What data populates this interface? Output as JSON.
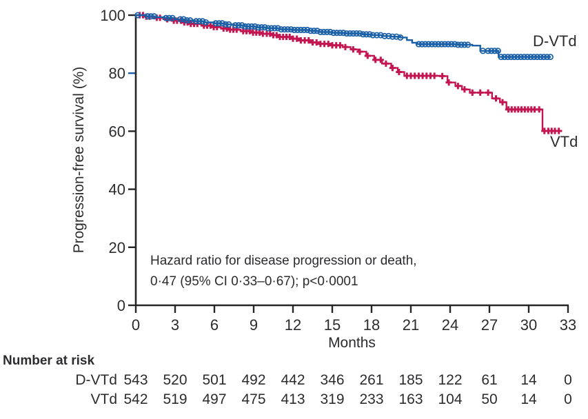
{
  "annotation": {
    "line1": "Hazard ratio for disease progression or death,",
    "line2": "0·47 (95% CI 0·33–0·67); p<0·0001"
  },
  "axes": {
    "x_label": "Months",
    "y_label": "Progression-free survival (%)",
    "x_ticks": [
      0,
      3,
      6,
      9,
      12,
      15,
      18,
      21,
      24,
      27,
      30,
      33
    ],
    "y_ticks": [
      0,
      20,
      40,
      60,
      80,
      100
    ],
    "x_range": [
      0,
      33
    ],
    "y_range": [
      0,
      100
    ],
    "axis_color": "#272425",
    "accent_tick": {
      "axis": "y",
      "value": 80,
      "color": "#1a60a8"
    }
  },
  "risk_table": {
    "title": "Number at risk",
    "rows": [
      {
        "label": "D-VTd",
        "values": [
          543,
          520,
          501,
          492,
          442,
          346,
          261,
          185,
          122,
          61,
          14,
          0
        ]
      },
      {
        "label": "VTd",
        "values": [
          542,
          519,
          497,
          475,
          413,
          319,
          233,
          163,
          104,
          50,
          14,
          0
        ]
      }
    ]
  },
  "chart_data": {
    "type": "line",
    "subtype": "kaplan-meier-step",
    "title": "",
    "xlabel": "Months",
    "ylabel": "Progression-free survival (%)",
    "xlim": [
      0,
      33
    ],
    "ylim": [
      0,
      100
    ],
    "grid": false,
    "legend_position": "curve-end-labels",
    "series": [
      {
        "name": "VTd",
        "color": "#c31650",
        "marker": "plus",
        "steps": [
          [
            0,
            100
          ],
          [
            0.7,
            99.5
          ],
          [
            1.4,
            99.1
          ],
          [
            2.1,
            98.6
          ],
          [
            2.8,
            98.1
          ],
          [
            3.5,
            97.5
          ],
          [
            4.2,
            97.0
          ],
          [
            5.0,
            96.4
          ],
          [
            5.8,
            95.9
          ],
          [
            6.5,
            95.4
          ],
          [
            7.2,
            95.0
          ],
          [
            8.0,
            94.5
          ],
          [
            8.8,
            94.0
          ],
          [
            9.5,
            93.6
          ],
          [
            10.3,
            93.1
          ],
          [
            11.0,
            92.5
          ],
          [
            11.8,
            91.9
          ],
          [
            12.5,
            91.3
          ],
          [
            13.3,
            90.6
          ],
          [
            14.0,
            90.1
          ],
          [
            15.0,
            89.6
          ],
          [
            15.8,
            89.0
          ],
          [
            16.4,
            88.2
          ],
          [
            17.0,
            87.4
          ],
          [
            17.6,
            86.0
          ],
          [
            18.2,
            84.6
          ],
          [
            18.8,
            83.3
          ],
          [
            19.5,
            81.8
          ],
          [
            20.0,
            80.4
          ],
          [
            20.5,
            79.1
          ],
          [
            23.2,
            79.0
          ],
          [
            23.8,
            76.8
          ],
          [
            24.4,
            75.6
          ],
          [
            24.9,
            74.4
          ],
          [
            25.5,
            73.3
          ],
          [
            27.2,
            71.3
          ],
          [
            27.8,
            70.0
          ],
          [
            28.3,
            67.5
          ],
          [
            31.05,
            60.1
          ],
          [
            32.55,
            60.1
          ]
        ],
        "censor_marks": [
          0.3,
          0.55,
          0.8,
          1.05,
          1.6,
          1.85,
          2.4,
          2.9,
          3.15,
          3.45,
          3.7,
          3.95,
          4.2,
          4.45,
          4.7,
          5.2,
          5.45,
          5.7,
          5.95,
          6.2,
          6.7,
          6.95,
          7.2,
          7.45,
          7.7,
          8.2,
          8.45,
          8.7,
          8.95,
          9.2,
          9.45,
          9.7,
          10.0,
          10.25,
          10.5,
          10.75,
          11.0,
          11.25,
          11.5,
          11.75,
          12.0,
          12.3,
          12.6,
          12.9,
          13.2,
          13.5,
          13.8,
          14.1,
          14.4,
          14.7,
          15.0,
          15.3,
          15.6,
          16.0,
          16.6,
          17.1,
          17.7,
          18.3,
          18.7,
          19.1,
          19.6,
          20.1,
          20.7,
          21.0,
          21.3,
          21.6,
          21.9,
          22.2,
          22.5,
          22.8,
          23.4,
          23.9,
          24.6,
          25.1,
          25.7,
          26.3,
          26.9,
          27.5,
          28.0,
          28.45,
          28.7,
          28.95,
          29.2,
          29.45,
          29.7,
          29.95,
          30.2,
          30.45,
          30.8,
          31.2,
          31.5,
          31.75,
          32.0,
          32.3
        ]
      },
      {
        "name": "D-VTd",
        "color": "#1a60a8",
        "marker": "circle",
        "steps": [
          [
            0,
            100
          ],
          [
            0.8,
            99.6
          ],
          [
            1.5,
            99.3
          ],
          [
            2.2,
            99.0
          ],
          [
            3.0,
            98.6
          ],
          [
            3.8,
            98.2
          ],
          [
            4.5,
            97.9
          ],
          [
            5.2,
            97.5
          ],
          [
            6.0,
            97.2
          ],
          [
            6.8,
            96.8
          ],
          [
            7.5,
            96.5
          ],
          [
            8.3,
            96.1
          ],
          [
            9.2,
            95.8
          ],
          [
            10,
            95.5
          ],
          [
            11,
            95.1
          ],
          [
            12,
            94.9
          ],
          [
            13.2,
            94.6
          ],
          [
            14,
            94.2
          ],
          [
            15,
            93.9
          ],
          [
            16,
            93.7
          ],
          [
            17.3,
            93.4
          ],
          [
            18,
            93.1
          ],
          [
            18.8,
            92.8
          ],
          [
            19.5,
            92.6
          ],
          [
            20.2,
            92.3
          ],
          [
            20.7,
            91.4
          ],
          [
            21.1,
            90.5
          ],
          [
            21.5,
            90.0
          ],
          [
            24.6,
            89.8
          ],
          [
            25.7,
            89.5
          ],
          [
            26.3,
            87.7
          ],
          [
            27.7,
            85.6
          ],
          [
            31.7,
            85.6
          ]
        ],
        "censor_marks": [
          0.15,
          0.9,
          1.15,
          1.4,
          2.3,
          2.55,
          2.8,
          3.4,
          3.65,
          3.9,
          4.15,
          4.6,
          4.85,
          5.1,
          5.35,
          6.1,
          6.35,
          6.6,
          6.85,
          7.1,
          7.6,
          7.85,
          8.1,
          8.35,
          8.6,
          8.85,
          9.1,
          9.35,
          9.6,
          9.85,
          10.1,
          10.35,
          10.6,
          10.85,
          11.1,
          11.35,
          11.6,
          11.85,
          12.1,
          12.35,
          12.6,
          12.85,
          13.1,
          13.35,
          13.6,
          13.85,
          14.1,
          14.35,
          14.6,
          14.85,
          15.1,
          15.35,
          15.6,
          15.85,
          16.1,
          16.35,
          16.6,
          16.85,
          17.1,
          17.35,
          17.6,
          17.85,
          18.1,
          18.4,
          18.7,
          19.0,
          19.3,
          19.6,
          19.9,
          20.2,
          21.6,
          21.85,
          22.1,
          22.35,
          22.6,
          22.85,
          23.1,
          23.35,
          23.6,
          23.85,
          24.1,
          24.35,
          24.6,
          24.85,
          25.1,
          25.35,
          26.5,
          26.9,
          27.15,
          27.4,
          27.65,
          27.9,
          28.15,
          28.4,
          28.65,
          28.9,
          29.15,
          29.4,
          29.65,
          29.9,
          30.15,
          30.4,
          30.65,
          30.9,
          31.15,
          31.4,
          31.65
        ]
      }
    ]
  }
}
